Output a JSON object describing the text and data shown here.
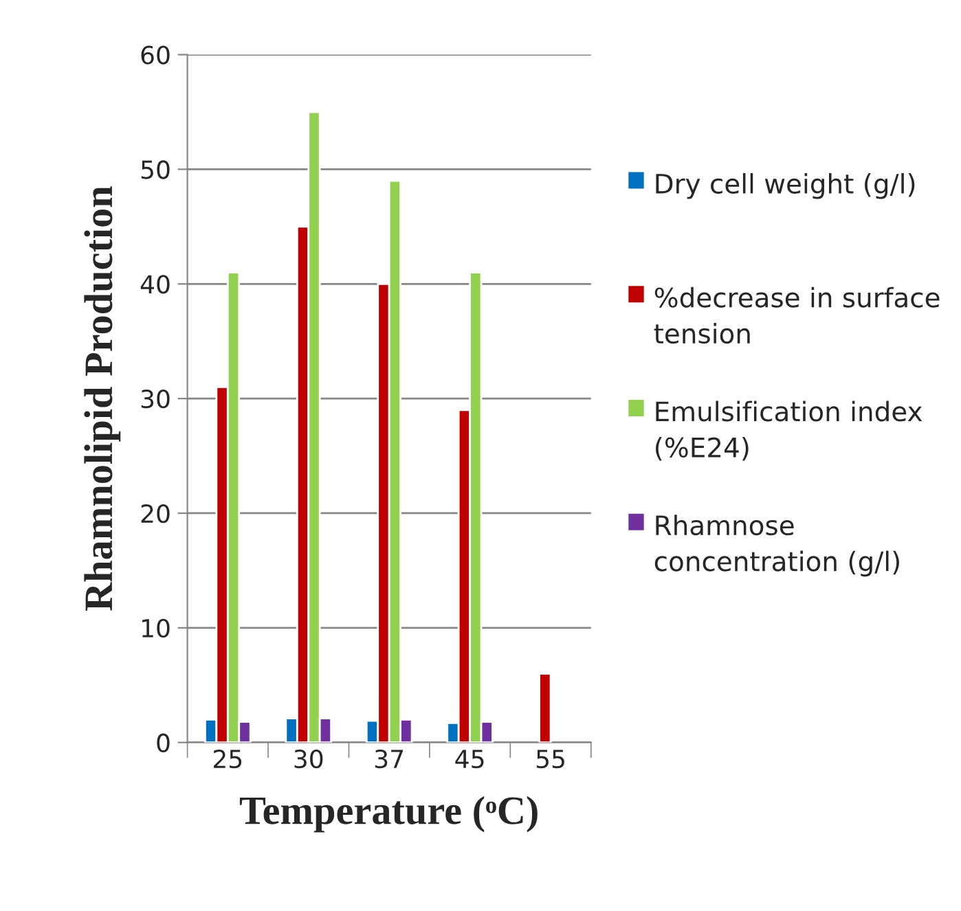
{
  "chart_data": {
    "type": "bar",
    "xlabel": "Temperature (ᵒC)",
    "ylabel": "Rhamnolipid Production",
    "categories": [
      "25",
      "30",
      "37",
      "45",
      "55"
    ],
    "series": [
      {
        "name": "Dry cell weight (g/l)",
        "color": "#0070c0",
        "values": [
          2.0,
          2.1,
          1.9,
          1.7,
          null
        ]
      },
      {
        "name": "%decrease in surface tension",
        "color": "#c00000",
        "values": [
          31,
          45,
          40,
          29,
          6
        ]
      },
      {
        "name": "Emulsification index (%E24)",
        "color": "#92d050",
        "values": [
          41,
          55,
          49,
          41,
          null
        ]
      },
      {
        "name": "Rhamnose concentration (g/l)",
        "color": "#7030a0",
        "values": [
          1.8,
          2.1,
          2.0,
          1.8,
          null
        ]
      }
    ],
    "ylim": [
      0,
      60
    ],
    "yticks": [
      0,
      10,
      20,
      30,
      40,
      50,
      60
    ],
    "grid": "y",
    "legend": "right"
  }
}
